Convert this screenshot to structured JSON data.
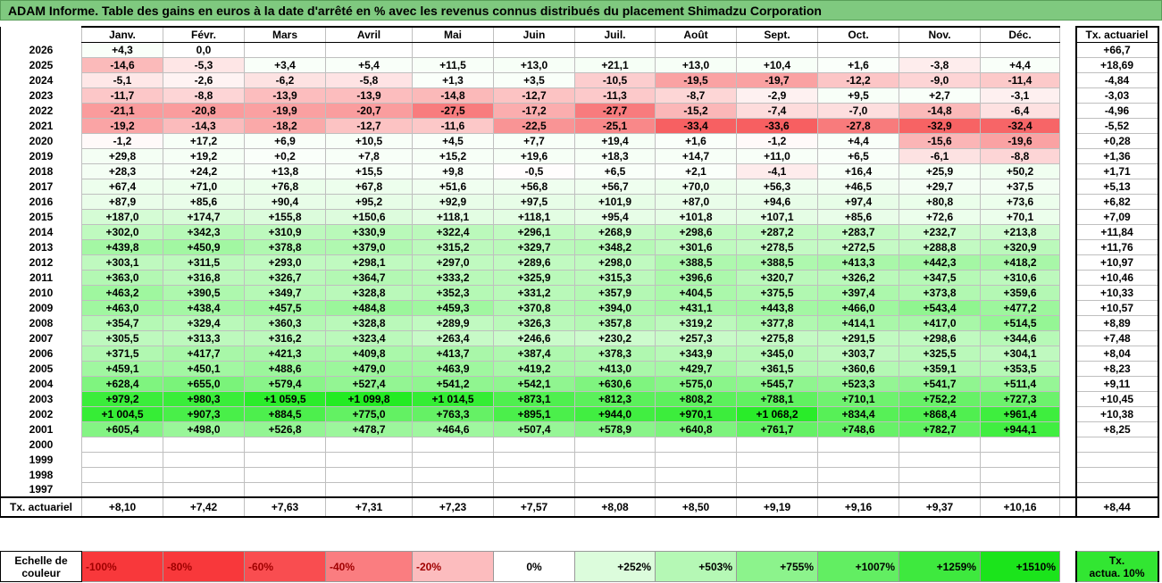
{
  "title": "ADAM Informe. Table des gains en euros à la date d'arrêté en % avec les revenus connus distribués du placement Shimadzu Corporation",
  "months": [
    "Janv.",
    "Févr.",
    "Mars",
    "Avril",
    "Mai",
    "Juin",
    "Juil.",
    "Août",
    "Sept.",
    "Oct.",
    "Nov.",
    "Déc."
  ],
  "actuarial_header": "Tx. actuariel",
  "rows": [
    {
      "year": "2026",
      "values": [
        "+4,3",
        "0,0",
        "",
        "",
        "",
        "",
        "",
        "",
        "",
        "",
        "",
        ""
      ],
      "act": "+66,7"
    },
    {
      "year": "2025",
      "values": [
        "-14,6",
        "-5,3",
        "+3,4",
        "+5,4",
        "+11,5",
        "+13,0",
        "+21,1",
        "+13,0",
        "+10,4",
        "+1,6",
        "-3,8",
        "+4,4"
      ],
      "act": "+18,69"
    },
    {
      "year": "2024",
      "values": [
        "-5,1",
        "-2,6",
        "-6,2",
        "-5,8",
        "+1,3",
        "+3,5",
        "-10,5",
        "-19,5",
        "-19,7",
        "-12,2",
        "-9,0",
        "-11,4"
      ],
      "act": "-4,84"
    },
    {
      "year": "2023",
      "values": [
        "-11,7",
        "-8,8",
        "-13,9",
        "-13,9",
        "-14,8",
        "-12,7",
        "-11,3",
        "-8,7",
        "-2,9",
        "+9,5",
        "+2,7",
        "-3,1"
      ],
      "act": "-3,03"
    },
    {
      "year": "2022",
      "values": [
        "-21,1",
        "-20,8",
        "-19,9",
        "-20,7",
        "-27,5",
        "-17,2",
        "-27,7",
        "-15,2",
        "-7,4",
        "-7,0",
        "-14,8",
        "-6,4"
      ],
      "act": "-4,96"
    },
    {
      "year": "2021",
      "values": [
        "-19,2",
        "-14,3",
        "-18,2",
        "-12,7",
        "-11,6",
        "-22,5",
        "-25,1",
        "-33,4",
        "-33,6",
        "-27,8",
        "-32,9",
        "-32,4"
      ],
      "act": "-5,52"
    },
    {
      "year": "2020",
      "values": [
        "-1,2",
        "+17,2",
        "+6,9",
        "+10,5",
        "+4,5",
        "+7,7",
        "+19,4",
        "+1,6",
        "-1,2",
        "+4,4",
        "-15,6",
        "-19,6"
      ],
      "act": "+0,28"
    },
    {
      "year": "2019",
      "values": [
        "+29,8",
        "+19,2",
        "+0,2",
        "+7,8",
        "+15,2",
        "+19,6",
        "+18,3",
        "+14,7",
        "+11,0",
        "+6,5",
        "-6,1",
        "-8,8"
      ],
      "act": "+1,36"
    },
    {
      "year": "2018",
      "values": [
        "+28,3",
        "+24,2",
        "+13,8",
        "+15,5",
        "+9,8",
        "-0,5",
        "+6,5",
        "+2,1",
        "-4,1",
        "+16,4",
        "+25,9",
        "+50,2"
      ],
      "act": "+1,71"
    },
    {
      "year": "2017",
      "values": [
        "+67,4",
        "+71,0",
        "+76,8",
        "+67,8",
        "+51,6",
        "+56,8",
        "+56,7",
        "+70,0",
        "+56,3",
        "+46,5",
        "+29,7",
        "+37,5"
      ],
      "act": "+5,13"
    },
    {
      "year": "2016",
      "values": [
        "+87,9",
        "+85,6",
        "+90,4",
        "+95,2",
        "+92,9",
        "+97,5",
        "+101,9",
        "+87,0",
        "+94,6",
        "+97,4",
        "+80,8",
        "+73,6"
      ],
      "act": "+6,82"
    },
    {
      "year": "2015",
      "values": [
        "+187,0",
        "+174,7",
        "+155,8",
        "+150,6",
        "+118,1",
        "+118,1",
        "+95,4",
        "+101,8",
        "+107,1",
        "+85,6",
        "+72,6",
        "+70,1"
      ],
      "act": "+7,09"
    },
    {
      "year": "2014",
      "values": [
        "+302,0",
        "+342,3",
        "+310,9",
        "+330,9",
        "+322,4",
        "+296,1",
        "+268,9",
        "+298,6",
        "+287,2",
        "+283,7",
        "+232,7",
        "+213,8"
      ],
      "act": "+11,84"
    },
    {
      "year": "2013",
      "values": [
        "+439,8",
        "+450,9",
        "+378,8",
        "+379,0",
        "+315,2",
        "+329,7",
        "+348,2",
        "+301,6",
        "+278,5",
        "+272,5",
        "+288,8",
        "+320,9"
      ],
      "act": "+11,76"
    },
    {
      "year": "2012",
      "values": [
        "+303,1",
        "+311,5",
        "+293,0",
        "+298,1",
        "+297,0",
        "+289,6",
        "+298,0",
        "+388,5",
        "+388,5",
        "+413,3",
        "+442,3",
        "+418,2"
      ],
      "act": "+10,97"
    },
    {
      "year": "2011",
      "values": [
        "+363,0",
        "+316,8",
        "+326,7",
        "+364,7",
        "+333,2",
        "+325,9",
        "+315,3",
        "+396,6",
        "+320,7",
        "+326,2",
        "+347,5",
        "+310,6"
      ],
      "act": "+10,46"
    },
    {
      "year": "2010",
      "values": [
        "+463,2",
        "+390,5",
        "+349,7",
        "+328,8",
        "+352,3",
        "+331,2",
        "+357,9",
        "+404,5",
        "+375,5",
        "+397,4",
        "+373,8",
        "+359,6"
      ],
      "act": "+10,33"
    },
    {
      "year": "2009",
      "values": [
        "+463,0",
        "+438,4",
        "+457,5",
        "+484,8",
        "+459,3",
        "+370,8",
        "+394,0",
        "+431,1",
        "+443,8",
        "+466,0",
        "+543,4",
        "+477,2"
      ],
      "act": "+10,57"
    },
    {
      "year": "2008",
      "values": [
        "+354,7",
        "+329,4",
        "+360,3",
        "+328,8",
        "+289,9",
        "+326,3",
        "+357,8",
        "+319,2",
        "+377,8",
        "+414,1",
        "+417,0",
        "+514,5"
      ],
      "act": "+8,89"
    },
    {
      "year": "2007",
      "values": [
        "+305,5",
        "+313,3",
        "+316,2",
        "+323,4",
        "+263,4",
        "+246,6",
        "+230,2",
        "+257,3",
        "+275,8",
        "+291,5",
        "+298,6",
        "+344,6"
      ],
      "act": "+7,48"
    },
    {
      "year": "2006",
      "values": [
        "+371,5",
        "+417,7",
        "+421,3",
        "+409,8",
        "+413,7",
        "+387,4",
        "+378,3",
        "+343,9",
        "+345,0",
        "+303,7",
        "+325,5",
        "+304,1"
      ],
      "act": "+8,04"
    },
    {
      "year": "2005",
      "values": [
        "+459,1",
        "+450,1",
        "+488,6",
        "+479,0",
        "+463,9",
        "+419,2",
        "+413,0",
        "+429,7",
        "+361,5",
        "+360,6",
        "+359,1",
        "+353,5"
      ],
      "act": "+8,23"
    },
    {
      "year": "2004",
      "values": [
        "+628,4",
        "+655,0",
        "+579,4",
        "+527,4",
        "+541,2",
        "+542,1",
        "+630,6",
        "+575,0",
        "+545,7",
        "+523,3",
        "+541,7",
        "+511,4"
      ],
      "act": "+9,11"
    },
    {
      "year": "2003",
      "values": [
        "+979,2",
        "+980,3",
        "+1 059,5",
        "+1 099,8",
        "+1 014,5",
        "+873,1",
        "+812,3",
        "+808,2",
        "+788,1",
        "+710,1",
        "+752,2",
        "+727,3"
      ],
      "act": "+10,45"
    },
    {
      "year": "2002",
      "values": [
        "+1 004,5",
        "+907,3",
        "+884,5",
        "+775,0",
        "+763,3",
        "+895,1",
        "+944,0",
        "+970,1",
        "+1 068,2",
        "+834,4",
        "+868,4",
        "+961,4"
      ],
      "act": "+10,38"
    },
    {
      "year": "2001",
      "values": [
        "+605,4",
        "+498,0",
        "+526,8",
        "+478,7",
        "+464,6",
        "+507,4",
        "+578,9",
        "+640,8",
        "+761,7",
        "+748,6",
        "+782,7",
        "+944,1"
      ],
      "act": "+8,25"
    },
    {
      "year": "2000",
      "values": [
        "",
        "",
        "",
        "",
        "",
        "",
        "",
        "",
        "",
        "",
        "",
        ""
      ],
      "act": ""
    },
    {
      "year": "1999",
      "values": [
        "",
        "",
        "",
        "",
        "",
        "",
        "",
        "",
        "",
        "",
        "",
        ""
      ],
      "act": ""
    },
    {
      "year": "1998",
      "values": [
        "",
        "",
        "",
        "",
        "",
        "",
        "",
        "",
        "",
        "",
        "",
        ""
      ],
      "act": ""
    },
    {
      "year": "1997",
      "values": [
        "",
        "",
        "",
        "",
        "",
        "",
        "",
        "",
        "",
        "",
        "",
        ""
      ],
      "act": ""
    }
  ],
  "footer": {
    "label": "Tx. actuariel",
    "values": [
      "+8,10",
      "+7,42",
      "+7,63",
      "+7,31",
      "+7,23",
      "+7,57",
      "+8,08",
      "+8,50",
      "+9,19",
      "+9,16",
      "+9,37",
      "+10,16"
    ],
    "act": "+8,44"
  },
  "scale": {
    "label_line1": "Echelle de",
    "label_line2": "couleur",
    "steps": [
      {
        "label": "-100%",
        "color": "#f8383b",
        "kind": "neg"
      },
      {
        "label": "-80%",
        "color": "#f8383b",
        "kind": "neg"
      },
      {
        "label": "-60%",
        "color": "#f94d50",
        "kind": "neg"
      },
      {
        "label": "-40%",
        "color": "#fa7d80",
        "kind": "neg"
      },
      {
        "label": "-20%",
        "color": "#fcbcbe",
        "kind": "neg"
      },
      {
        "label": "0%",
        "color": "#ffffff",
        "kind": "zero"
      },
      {
        "label": "+252%",
        "color": "#dcfcdc",
        "kind": "pos"
      },
      {
        "label": "+503%",
        "color": "#b5f8b5",
        "kind": "pos"
      },
      {
        "label": "+755%",
        "color": "#8cf38c",
        "kind": "pos"
      },
      {
        "label": "+1007%",
        "color": "#62ee62",
        "kind": "pos"
      },
      {
        "label": "+1259%",
        "color": "#3ee93e",
        "kind": "pos"
      },
      {
        "label": "+1510%",
        "color": "#1be41b",
        "kind": "pos"
      }
    ],
    "act_line1": "Tx.",
    "act_line2": "actua. 10%",
    "act_color": "#32e632"
  }
}
